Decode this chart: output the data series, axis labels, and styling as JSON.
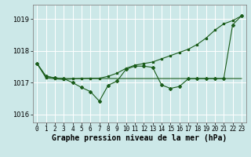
{
  "background_color": "#cce8e8",
  "grid_color": "#ffffff",
  "line_color": "#1a5c1a",
  "x_ticks": [
    0,
    1,
    2,
    3,
    4,
    5,
    6,
    7,
    8,
    9,
    10,
    11,
    12,
    13,
    14,
    15,
    16,
    17,
    18,
    19,
    20,
    21,
    22,
    23
  ],
  "y_ticks": [
    1016,
    1017,
    1018,
    1019
  ],
  "ylim": [
    1015.75,
    1019.45
  ],
  "xlabel": "Graphe pression niveau de la mer (hPa)",
  "series_trend": [
    1017.6,
    1017.15,
    1017.12,
    1017.1,
    1017.12,
    1017.13,
    1017.14,
    1017.14,
    1017.2,
    1017.3,
    1017.45,
    1017.55,
    1017.6,
    1017.65,
    1017.75,
    1017.85,
    1017.95,
    1018.05,
    1018.2,
    1018.4,
    1018.65,
    1018.85,
    1018.95,
    1019.1
  ],
  "series_flat": [
    1017.6,
    1017.2,
    1017.15,
    1017.13,
    1017.13,
    1017.13,
    1017.13,
    1017.13,
    1017.13,
    1017.13,
    1017.13,
    1017.13,
    1017.13,
    1017.13,
    1017.13,
    1017.13,
    1017.13,
    1017.13,
    1017.13,
    1017.13,
    1017.13,
    1017.13,
    1017.13,
    1017.13
  ],
  "series_main": [
    1017.6,
    1017.2,
    1017.15,
    1017.13,
    1017.0,
    1016.85,
    1016.72,
    1016.42,
    1016.92,
    1017.05,
    1017.42,
    1017.52,
    1017.52,
    1017.48,
    1016.93,
    1016.82,
    1016.88,
    1017.12,
    1017.13,
    1017.13,
    1017.13,
    1017.13,
    1018.82,
    1019.1
  ],
  "title_fontsize": 7,
  "tick_fontsize": 5.5
}
